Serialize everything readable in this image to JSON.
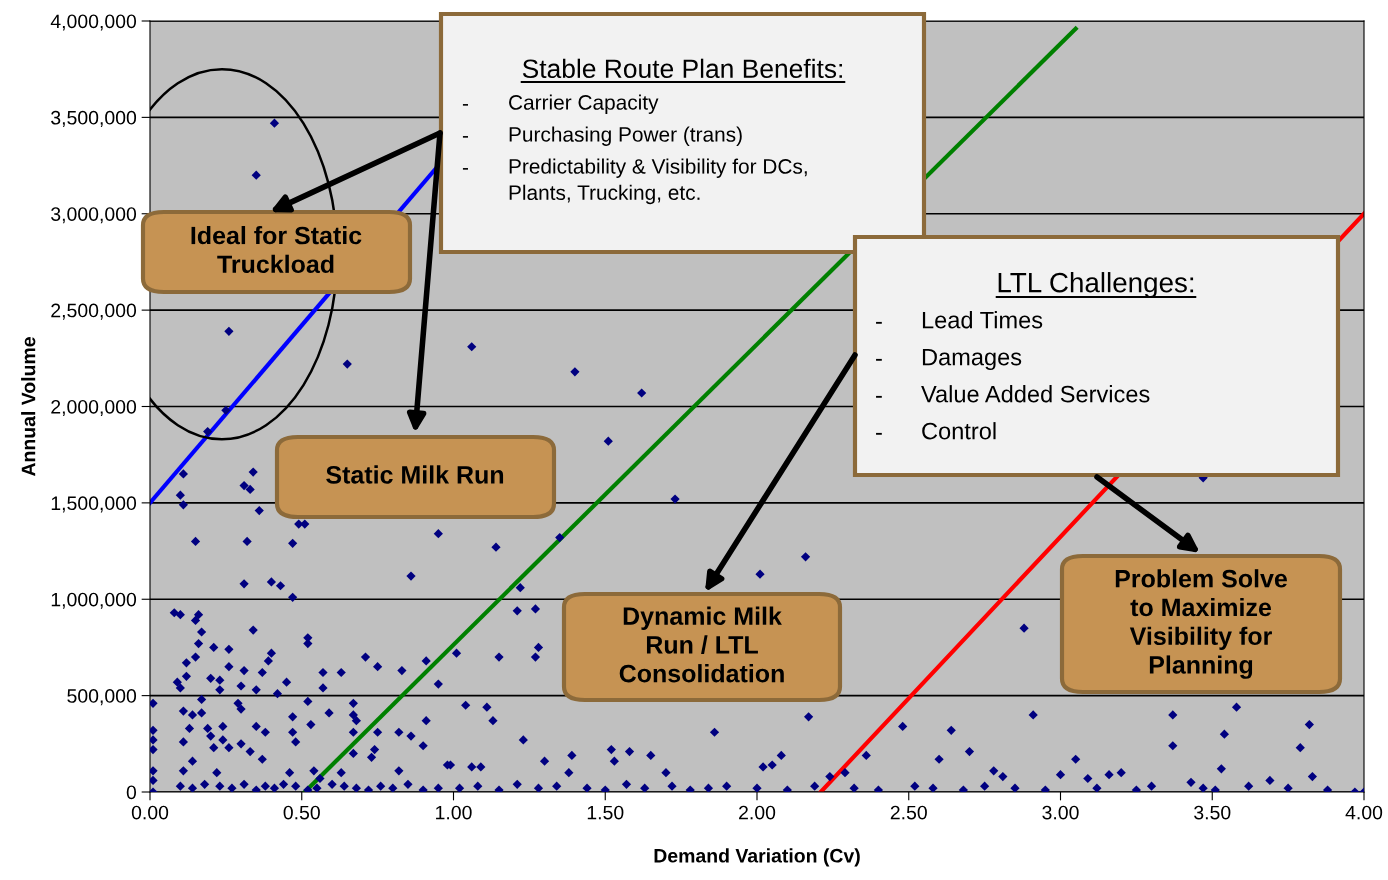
{
  "chart_data": {
    "type": "scatter",
    "xlabel": "Demand Variation (Cv)",
    "ylabel": "Annual Volume",
    "xlim": [
      0,
      4
    ],
    "xticks": [
      {
        "value": 0,
        "label": "0.00"
      },
      {
        "value": 0.5,
        "label": "0.50"
      },
      {
        "value": 1,
        "label": "1.00"
      },
      {
        "value": 1.5,
        "label": "1.50"
      },
      {
        "value": 2,
        "label": "2.00"
      },
      {
        "value": 2.5,
        "label": "2.50"
      },
      {
        "value": 3,
        "label": "3.00"
      },
      {
        "value": 3.5,
        "label": "3.50"
      },
      {
        "value": 4,
        "label": "4.00"
      }
    ],
    "ylim": [
      0,
      4000000
    ],
    "yticks": [
      {
        "value": 0,
        "label": "0"
      },
      {
        "value": 500000,
        "label": "500,000"
      },
      {
        "value": 1000000,
        "label": "1,000,000"
      },
      {
        "value": 1500000,
        "label": "1,500,000"
      },
      {
        "value": 2000000,
        "label": "2,000,000"
      },
      {
        "value": 2500000,
        "label": "2,500,000"
      },
      {
        "value": 3000000,
        "label": "3,000,000"
      },
      {
        "value": 3500000,
        "label": "3,500,000"
      },
      {
        "value": 4000000,
        "label": "4,000,000"
      }
    ],
    "grid": "y",
    "legend": false,
    "marker": "diamond",
    "series": [
      {
        "color": "#000080",
        "x": [
          0.41,
          0.35,
          0.26,
          0.25,
          0.19,
          0.65,
          1.06,
          1.4,
          1.62,
          1.51,
          1.73,
          3.47,
          2.16,
          2.01,
          2.88,
          2.91,
          2.17,
          1.86,
          2.48,
          0.11,
          0.1,
          0.11,
          0.34,
          0.31,
          0.33,
          0.36,
          0.51,
          0.49,
          0.15,
          0.32,
          0.47,
          0.95,
          0.31,
          0.4,
          0.43,
          0.47,
          0.86,
          0.08,
          0.1,
          0.15,
          0.16,
          0.17,
          0.34,
          0.52,
          0.52,
          0.16,
          0.21,
          0.26,
          0.4,
          0.39,
          0.15,
          0.12,
          0.71,
          0.75,
          0.91,
          0.26,
          0.31,
          0.37,
          0.57,
          0.63,
          0.83,
          0.12,
          0.09,
          0.1,
          0.2,
          0.23,
          0.23,
          0.3,
          0.35,
          0.45,
          0.57,
          0.95,
          0.42,
          0.01,
          0.17,
          0.29,
          0.52,
          0.67,
          0.11,
          0.14,
          0.17,
          0.3,
          0.47,
          0.59,
          0.67,
          0.68,
          0.35,
          0.38,
          0.53,
          0.13,
          0.19,
          0.2,
          0.24,
          0.24,
          0.47,
          0.48,
          0.67,
          0.75,
          0.82,
          0.86,
          0.91,
          0.01,
          0.01,
          0.01,
          0.01,
          0.01,
          0.01,
          0.11,
          0.21,
          0.26,
          0.3,
          0.33,
          0.67,
          0.74,
          0.9,
          0.73,
          0.14,
          0.37,
          0.82,
          0.98,
          0.11,
          0.22,
          0.46,
          0.54,
          0.63,
          0.56,
          0.1,
          0.14,
          0.18,
          0.23,
          0.27,
          0.31,
          0.35,
          0.38,
          0.41,
          0.44,
          0.48,
          0.52,
          0.55,
          0.6,
          0.64,
          0.68,
          0.72,
          0.76,
          0.8,
          0.85,
          0.9,
          0.95,
          1.14,
          1.35,
          1.22,
          1.21,
          1.27,
          1.01,
          1.15,
          1.28,
          1.27,
          1.04,
          1.11,
          1.13,
          1.23,
          0.99,
          1.06,
          1.09,
          1.3,
          1.39,
          1.52,
          1.53,
          1.58,
          1.65,
          1.7,
          1.38,
          1.02,
          1.08,
          1.15,
          1.21,
          1.28,
          1.34,
          1.44,
          1.5,
          1.57,
          1.63,
          1.72,
          1.78,
          1.84,
          1.9,
          2.08,
          2.02,
          2.05,
          2.36,
          2.6,
          2.7,
          2.78,
          2.81,
          2.24,
          2.29,
          2.64,
          2.0,
          2.1,
          2.19,
          2.32,
          2.4,
          2.52,
          2.58,
          2.68,
          2.75,
          2.85,
          2.95,
          3.37,
          3.58,
          3.54,
          3.82,
          3.37,
          3.79,
          3.05,
          3.0,
          3.09,
          3.16,
          3.2,
          3.53,
          3.69,
          3.83,
          3.43,
          3.12,
          3.25,
          3.3,
          3.47,
          3.51,
          3.62,
          3.75,
          3.88,
          3.97,
          4.0
        ],
        "values": [
          3470000,
          3200000,
          2390000,
          1980000,
          1870000,
          2220000,
          2310000,
          2180000,
          2070000,
          1820000,
          1520000,
          1630000,
          1220000,
          1130000,
          850000,
          400000,
          390000,
          310000,
          340000,
          1650000,
          1540000,
          1490000,
          1660000,
          1590000,
          1570000,
          1460000,
          1390000,
          1390000,
          1300000,
          1300000,
          1290000,
          1340000,
          1080000,
          1090000,
          1070000,
          1010000,
          1120000,
          930000,
          920000,
          890000,
          920000,
          830000,
          840000,
          800000,
          770000,
          770000,
          750000,
          740000,
          720000,
          680000,
          700000,
          670000,
          700000,
          650000,
          680000,
          650000,
          630000,
          620000,
          620000,
          620000,
          630000,
          600000,
          570000,
          540000,
          590000,
          580000,
          530000,
          550000,
          530000,
          570000,
          540000,
          560000,
          510000,
          460000,
          480000,
          460000,
          470000,
          460000,
          420000,
          400000,
          410000,
          430000,
          390000,
          410000,
          400000,
          370000,
          340000,
          310000,
          350000,
          330000,
          330000,
          290000,
          340000,
          270000,
          310000,
          260000,
          310000,
          310000,
          310000,
          290000,
          370000,
          320000,
          270000,
          220000,
          110000,
          60000,
          0,
          260000,
          230000,
          230000,
          250000,
          210000,
          200000,
          220000,
          240000,
          180000,
          160000,
          170000,
          110000,
          140000,
          110000,
          100000,
          100000,
          110000,
          100000,
          70000,
          30000,
          20000,
          40000,
          30000,
          20000,
          40000,
          10000,
          30000,
          20000,
          40000,
          30000,
          10000,
          20000,
          40000,
          30000,
          20000,
          10000,
          30000,
          20000,
          40000,
          10000,
          20000,
          1270000,
          1320000,
          1060000,
          940000,
          950000,
          720000,
          700000,
          750000,
          700000,
          450000,
          440000,
          370000,
          270000,
          140000,
          130000,
          130000,
          160000,
          190000,
          220000,
          160000,
          210000,
          190000,
          100000,
          100000,
          20000,
          30000,
          10000,
          40000,
          20000,
          30000,
          20000,
          10000,
          40000,
          20000,
          30000,
          10000,
          20000,
          30000,
          190000,
          130000,
          140000,
          190000,
          170000,
          210000,
          110000,
          80000,
          80000,
          100000,
          320000,
          20000,
          10000,
          30000,
          20000,
          10000,
          30000,
          20000,
          10000,
          30000,
          20000,
          10000,
          400000,
          440000,
          300000,
          350000,
          240000,
          230000,
          170000,
          90000,
          70000,
          90000,
          100000,
          120000,
          60000,
          80000,
          50000,
          20000,
          10000,
          30000,
          20000,
          10000,
          30000,
          20000,
          10000,
          0,
          0
        ]
      },
      {
        "type": "line",
        "marker": "none",
        "color": "#0000ff",
        "x": [
          0,
          0.95
        ],
        "values": [
          1500000,
          3250000
        ]
      },
      {
        "type": "line",
        "marker": "none",
        "color": "#008000",
        "x": [
          0.51,
          3.05
        ],
        "values": [
          0,
          3960000
        ]
      },
      {
        "type": "line",
        "marker": "none",
        "color": "#ff0000",
        "x": [
          2.21,
          4.0
        ],
        "values": [
          0,
          3000000
        ]
      }
    ],
    "annotations": [
      "Stable Route Plan Benefits:",
      "-\tCarrier Capacity",
      "-\tPurchasing Power (trans)",
      "-\tPredictability & Visibility for DCs,\nPlants, Trucking, etc.",
      "LTL Challenges:",
      "-\tLead Times",
      "-\tDamages",
      "-\tValue Added Services",
      "-\tControl",
      "Ideal for Static\nTruckload",
      "Static Milk Run",
      "Dynamic Milk\nRun / LTL\nConsolidation",
      "Problem Solve\nto Maximize\nVisibility for\nPlanning"
    ]
  }
}
